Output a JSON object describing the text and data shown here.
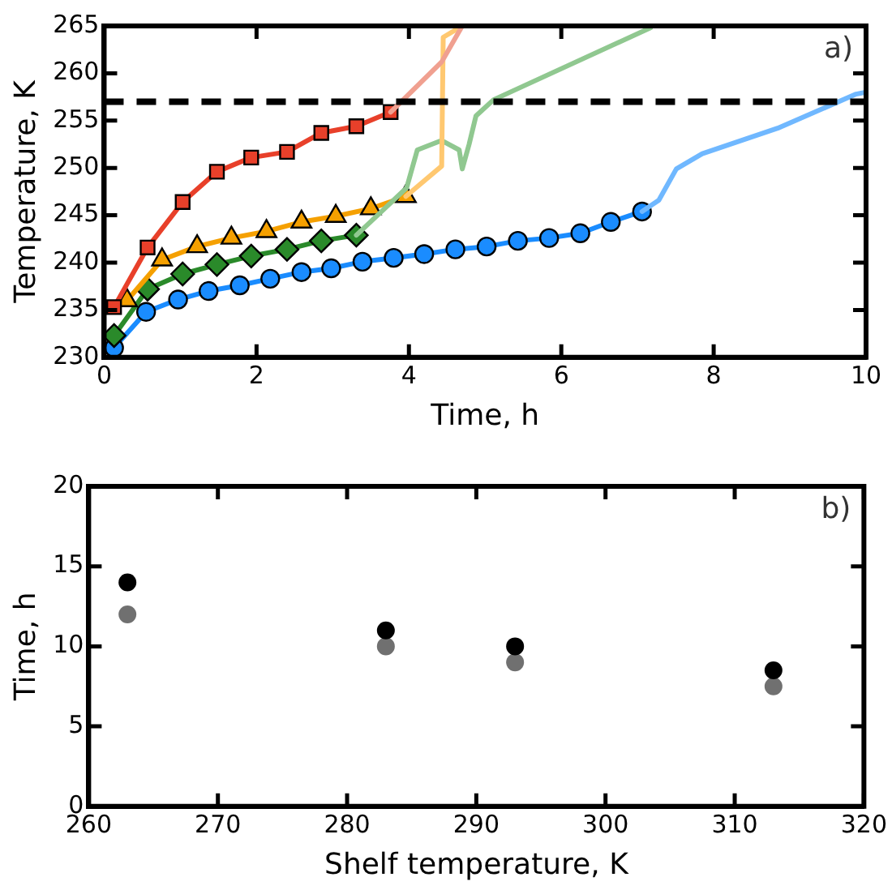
{
  "chart_data": [
    {
      "type": "line",
      "xlabel": "Time, h",
      "ylabel": "Temperature, K",
      "annotations": [
        "a)"
      ],
      "xlim": [
        0,
        10
      ],
      "ylim": [
        230,
        265
      ],
      "xticks": [
        0,
        2,
        4,
        6,
        8,
        10
      ],
      "yticks": [
        230,
        235,
        240,
        245,
        250,
        255,
        260,
        265
      ],
      "legend": false,
      "ref_lines": [
        {
          "axis": "y",
          "value": 257,
          "color": "#000000",
          "line_style": "dashed"
        }
      ],
      "series": [
        {
          "color": "#f0a090",
          "marker": "none",
          "x": [
            3.76,
            4.43,
            4.7
          ],
          "values": [
            255.9,
            261.2,
            265
          ]
        },
        {
          "color": "#ffc870",
          "marker": "none",
          "x": [
            3.96,
            4.43,
            4.45,
            4.7
          ],
          "values": [
            247.0,
            250.2,
            263.8,
            265
          ]
        },
        {
          "color": "#90c890",
          "marker": "none",
          "x": [
            3.31,
            3.97,
            4.11,
            4.43,
            4.66,
            4.7,
            4.79,
            4.88,
            5.11,
            7.17
          ],
          "values": [
            242.9,
            247.9,
            251.9,
            252.9,
            251.9,
            249.9,
            252.5,
            255.5,
            257.2,
            264.8
          ]
        },
        {
          "color": "#70b8ff",
          "marker": "none",
          "x": [
            7.06,
            7.28,
            7.51,
            7.85,
            8.84,
            9.87,
            10
          ],
          "values": [
            245.4,
            246.6,
            249.9,
            251.5,
            254.2,
            257.8,
            258
          ]
        },
        {
          "color": "#e8402a",
          "marker": "square",
          "x": [
            0.13,
            0.57,
            1.03,
            1.48,
            1.93,
            2.4,
            2.85,
            3.31,
            3.76
          ],
          "values": [
            235.3,
            241.6,
            246.4,
            249.6,
            251.1,
            251.7,
            253.7,
            254.4,
            255.9
          ]
        },
        {
          "color": "#f5a000",
          "marker": "triangle",
          "x": [
            0.3,
            0.76,
            1.22,
            1.67,
            2.13,
            2.59,
            3.04,
            3.5,
            3.96
          ],
          "values": [
            236,
            240.3,
            241.7,
            242.6,
            243.3,
            244.3,
            244.9,
            245.7,
            247.0
          ]
        },
        {
          "color": "#2a8a2a",
          "marker": "diamond",
          "x": [
            0.13,
            0.57,
            1.03,
            1.48,
            1.93,
            2.4,
            2.85,
            3.31
          ],
          "values": [
            232.3,
            237.2,
            238.8,
            239.8,
            240.7,
            241.4,
            242.3,
            242.9
          ]
        },
        {
          "color": "#1a8cff",
          "marker": "circle",
          "x": [
            0.13,
            0.55,
            0.97,
            1.37,
            1.78,
            2.18,
            2.59,
            2.98,
            3.39,
            3.8,
            4.2,
            4.61,
            5.02,
            5.43,
            5.84,
            6.25,
            6.65,
            7.06
          ],
          "values": [
            231,
            234.8,
            236.1,
            237,
            237.6,
            238.3,
            239,
            239.4,
            240.1,
            240.5,
            240.9,
            241.4,
            241.7,
            242.3,
            242.6,
            243.1,
            244.3,
            245.4
          ]
        }
      ]
    },
    {
      "type": "scatter",
      "xlabel": "Shelf temperature, K",
      "ylabel": "Time, h",
      "annotations": [
        "b)"
      ],
      "xlim": [
        260,
        320
      ],
      "ylim": [
        0,
        20
      ],
      "xticks": [
        260,
        270,
        280,
        290,
        300,
        310,
        320
      ],
      "yticks": [
        0,
        5,
        10,
        15,
        20
      ],
      "legend": false,
      "series": [
        {
          "color": "#000000",
          "marker": "circle",
          "x": [
            263,
            283,
            293,
            313
          ],
          "values": [
            14,
            11,
            10,
            8.5
          ]
        },
        {
          "color": "#707070",
          "marker": "circle",
          "x": [
            263,
            283,
            293,
            313
          ],
          "values": [
            12,
            10,
            9,
            7.5
          ]
        }
      ]
    }
  ]
}
